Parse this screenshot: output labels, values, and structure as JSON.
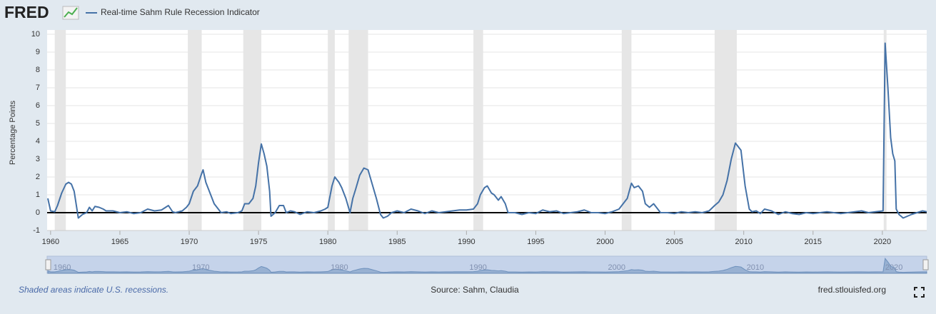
{
  "chart_data": {
    "type": "line",
    "logo": "FRED",
    "y_label": "Percentage Points",
    "note": "Shaded areas indicate U.S. recessions.",
    "source": "Source: Sahm, Claudia",
    "site": "fred.stlouisfed.org",
    "xlim": [
      1959.75,
      2023.2
    ],
    "xticks": [
      1960,
      1965,
      1970,
      1975,
      1980,
      1985,
      1990,
      1995,
      2000,
      2005,
      2010,
      2015,
      2020
    ],
    "ylim": [
      -1,
      10
    ],
    "yticks": [
      -1,
      0,
      1,
      2,
      3,
      4,
      5,
      6,
      7,
      8,
      9,
      10
    ],
    "grid": true,
    "reference_line": 0,
    "navigator_ticks": [
      1960,
      1970,
      1980,
      1990,
      2000,
      2010,
      2020
    ],
    "recessions": [
      [
        1960.3,
        1961.1
      ],
      [
        1969.9,
        1970.9
      ],
      [
        1973.9,
        1975.2
      ],
      [
        1980.0,
        1980.5
      ],
      [
        1981.5,
        1982.9
      ],
      [
        1990.5,
        1991.2
      ],
      [
        2001.2,
        2001.9
      ],
      [
        2007.9,
        2009.5
      ],
      [
        2020.1,
        2020.3
      ]
    ],
    "x": [
      1959.8,
      1960.0,
      1960.3,
      1960.5,
      1960.8,
      1961.1,
      1961.3,
      1961.5,
      1961.7,
      1961.9,
      1962.0,
      1962.3,
      1962.6,
      1962.8,
      1963.0,
      1963.2,
      1963.5,
      1963.8,
      1964.0,
      1964.5,
      1965.0,
      1965.5,
      1966.0,
      1966.5,
      1967.0,
      1967.5,
      1968.0,
      1968.5,
      1968.8,
      1969.0,
      1969.5,
      1969.8,
      1970.0,
      1970.3,
      1970.6,
      1970.9,
      1971.0,
      1971.2,
      1971.5,
      1971.8,
      1972.0,
      1972.3,
      1972.7,
      1973.0,
      1973.5,
      1973.8,
      1974.0,
      1974.3,
      1974.6,
      1974.8,
      1975.0,
      1975.2,
      1975.4,
      1975.6,
      1975.8,
      1975.9,
      1976.2,
      1976.5,
      1976.8,
      1977.0,
      1977.3,
      1977.6,
      1978.0,
      1978.5,
      1979.0,
      1979.5,
      1979.8,
      1980.0,
      1980.3,
      1980.5,
      1980.8,
      1981.0,
      1981.3,
      1981.6,
      1981.8,
      1982.0,
      1982.3,
      1982.6,
      1982.9,
      1983.2,
      1983.5,
      1983.8,
      1984.0,
      1984.3,
      1984.6,
      1985.0,
      1985.5,
      1986.0,
      1986.5,
      1987.0,
      1987.5,
      1988.0,
      1988.5,
      1989.0,
      1989.5,
      1990.0,
      1990.5,
      1990.8,
      1991.0,
      1991.3,
      1991.5,
      1991.8,
      1992.0,
      1992.3,
      1992.5,
      1992.8,
      1993.0,
      1993.5,
      1994.0,
      1994.5,
      1995.0,
      1995.5,
      1996.0,
      1996.5,
      1997.0,
      1997.5,
      1998.0,
      1998.5,
      1999.0,
      1999.5,
      2000.0,
      2000.5,
      2001.0,
      2001.3,
      2001.6,
      2001.9,
      2002.1,
      2002.4,
      2002.7,
      2002.9,
      2003.2,
      2003.5,
      2003.8,
      2004.0,
      2004.5,
      2005.0,
      2005.5,
      2006.0,
      2006.5,
      2007.0,
      2007.5,
      2007.9,
      2008.2,
      2008.5,
      2008.8,
      2009.1,
      2009.4,
      2009.6,
      2009.8,
      2010.1,
      2010.4,
      2010.6,
      2010.9,
      2011.2,
      2011.5,
      2012.0,
      2012.5,
      2013.0,
      2013.5,
      2014.0,
      2014.5,
      2015.0,
      2015.5,
      2016.0,
      2016.5,
      2017.0,
      2017.5,
      2018.0,
      2018.5,
      2019.0,
      2019.5,
      2020.05,
      2020.2,
      2020.4,
      2020.6,
      2020.75,
      2020.9,
      2021.0,
      2021.2,
      2021.5,
      2021.8,
      2022.1,
      2022.5,
      2022.9,
      2023.2
    ],
    "series": [
      {
        "name": "Real-time Sahm Rule Recession Indicator",
        "color": "#4572a7",
        "values": [
          0.8,
          0.1,
          0.05,
          0.4,
          1.1,
          1.6,
          1.7,
          1.6,
          1.2,
          0.2,
          -0.3,
          -0.1,
          0.0,
          0.3,
          0.1,
          0.35,
          0.3,
          0.2,
          0.1,
          0.1,
          0.0,
          0.05,
          -0.05,
          0.0,
          0.2,
          0.1,
          0.15,
          0.4,
          0.05,
          0.0,
          0.1,
          0.3,
          0.5,
          1.2,
          1.5,
          2.2,
          2.4,
          1.7,
          1.1,
          0.5,
          0.3,
          0.0,
          0.05,
          -0.05,
          0.0,
          0.1,
          0.5,
          0.5,
          0.8,
          1.5,
          2.8,
          3.85,
          3.3,
          2.6,
          1.2,
          -0.2,
          0.0,
          0.4,
          0.4,
          0.0,
          0.1,
          0.05,
          -0.1,
          0.05,
          0.0,
          0.1,
          0.2,
          0.3,
          1.5,
          2.0,
          1.7,
          1.4,
          0.8,
          0.0,
          0.8,
          1.3,
          2.1,
          2.5,
          2.4,
          1.6,
          0.8,
          -0.1,
          -0.3,
          -0.2,
          0.0,
          0.1,
          0.0,
          0.2,
          0.1,
          -0.05,
          0.1,
          0.0,
          0.05,
          0.1,
          0.15,
          0.15,
          0.2,
          0.5,
          1.0,
          1.4,
          1.5,
          1.1,
          1.0,
          0.7,
          0.9,
          0.5,
          0.0,
          0.0,
          -0.1,
          0.0,
          -0.05,
          0.15,
          0.05,
          0.1,
          -0.05,
          0.0,
          0.05,
          0.15,
          0.0,
          0.0,
          -0.05,
          0.05,
          0.2,
          0.5,
          0.8,
          1.65,
          1.4,
          1.5,
          1.2,
          0.5,
          0.3,
          0.5,
          0.2,
          0.0,
          0.0,
          -0.05,
          0.05,
          0.0,
          0.05,
          0.0,
          0.1,
          0.4,
          0.6,
          1.0,
          1.8,
          3.0,
          3.9,
          3.7,
          3.5,
          1.5,
          0.2,
          0.05,
          0.1,
          -0.05,
          0.2,
          0.1,
          -0.1,
          0.05,
          -0.05,
          -0.1,
          0.0,
          -0.05,
          0.0,
          0.05,
          0.0,
          -0.05,
          0.0,
          0.05,
          0.1,
          0.0,
          0.05,
          0.1,
          9.5,
          7.0,
          4.2,
          3.3,
          2.9,
          0.2,
          -0.1,
          -0.3,
          -0.2,
          -0.1,
          0.0,
          0.1,
          0.05
        ]
      }
    ]
  }
}
